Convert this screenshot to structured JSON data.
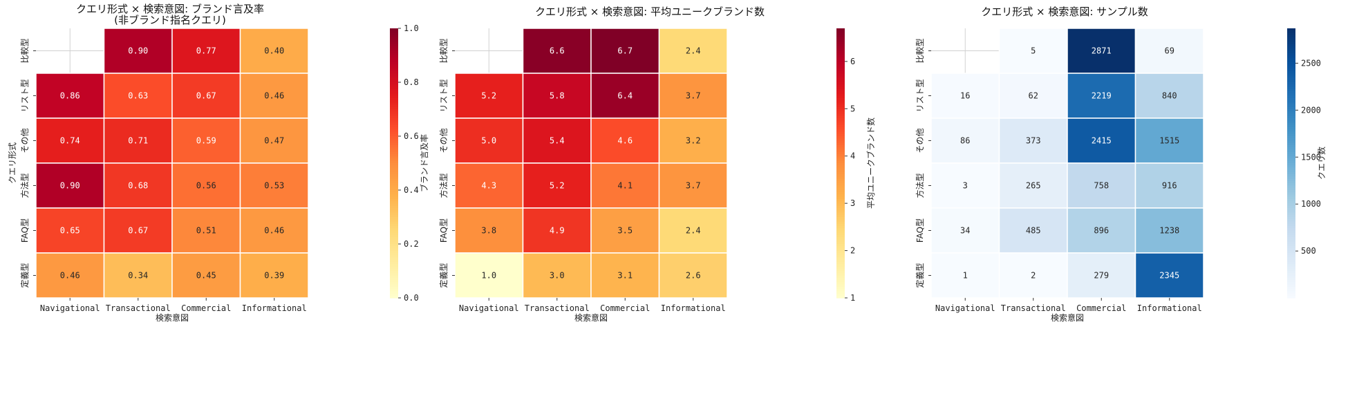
{
  "chart_data": [
    {
      "type": "heatmap",
      "title": "クエリ形式 × 検索意図: ブランド言及率\n(非ブランド指名クエリ)",
      "xlabel": "検索意図",
      "ylabel": "クエリ形式",
      "x_categories": [
        "Navigational",
        "Transactional",
        "Commercial",
        "Informational"
      ],
      "y_categories": [
        "比較型",
        "リスト型",
        "その他",
        "方法型",
        "FAQ型",
        "定義型"
      ],
      "values": [
        [
          null,
          0.9,
          0.77,
          0.4
        ],
        [
          0.86,
          0.63,
          0.67,
          0.46
        ],
        [
          0.74,
          0.71,
          0.59,
          0.47
        ],
        [
          0.9,
          0.68,
          0.56,
          0.53
        ],
        [
          0.65,
          0.67,
          0.51,
          0.46
        ],
        [
          0.46,
          0.34,
          0.45,
          0.39
        ]
      ],
      "labels": [
        [
          "",
          "0.90",
          "0.77",
          "0.40"
        ],
        [
          "0.86",
          "0.63",
          "0.67",
          "0.46"
        ],
        [
          "0.74",
          "0.71",
          "0.59",
          "0.47"
        ],
        [
          "0.90",
          "0.68",
          "0.56",
          "0.53"
        ],
        [
          "0.65",
          "0.67",
          "0.51",
          "0.46"
        ],
        [
          "0.46",
          "0.34",
          "0.45",
          "0.39"
        ]
      ],
      "colormap": "YlOrRd",
      "vmin": 0,
      "vmax": 1,
      "colorbar_label": "ブランド言及率",
      "colorbar_ticks": [
        0.0,
        0.2,
        0.4,
        0.6,
        0.8,
        1.0
      ],
      "colorbar_tick_labels": [
        "0.0",
        "0.2",
        "0.4",
        "0.6",
        "0.8",
        "1.0"
      ]
    },
    {
      "type": "heatmap",
      "title": "クエリ形式 × 検索意図: 平均ユニークブランド数",
      "xlabel": "検索意図",
      "ylabel": "",
      "x_categories": [
        "Navigational",
        "Transactional",
        "Commercial",
        "Informational"
      ],
      "y_categories": [
        "比較型",
        "リスト型",
        "その他",
        "方法型",
        "FAQ型",
        "定義型"
      ],
      "values": [
        [
          null,
          6.6,
          6.7,
          2.4
        ],
        [
          5.2,
          5.8,
          6.4,
          3.7
        ],
        [
          5.0,
          5.4,
          4.6,
          3.2
        ],
        [
          4.3,
          5.2,
          4.1,
          3.7
        ],
        [
          3.8,
          4.9,
          3.5,
          2.4
        ],
        [
          1.0,
          3.0,
          3.1,
          2.6
        ]
      ],
      "labels": [
        [
          "",
          "6.6",
          "6.7",
          "2.4"
        ],
        [
          "5.2",
          "5.8",
          "6.4",
          "3.7"
        ],
        [
          "5.0",
          "5.4",
          "4.6",
          "3.2"
        ],
        [
          "4.3",
          "5.2",
          "4.1",
          "3.7"
        ],
        [
          "3.8",
          "4.9",
          "3.5",
          "2.4"
        ],
        [
          "1.0",
          "3.0",
          "3.1",
          "2.6"
        ]
      ],
      "colormap": "YlOrRd",
      "vmin": 1.0,
      "vmax": 6.7,
      "colorbar_label": "平均ユニークブランド数",
      "colorbar_ticks": [
        1,
        2,
        3,
        4,
        5,
        6
      ],
      "colorbar_tick_labels": [
        "1",
        "2",
        "3",
        "4",
        "5",
        "6"
      ]
    },
    {
      "type": "heatmap",
      "title": "クエリ形式 × 検索意図: サンプル数",
      "xlabel": "検索意図",
      "ylabel": "",
      "x_categories": [
        "Navigational",
        "Transactional",
        "Commercial",
        "Informational"
      ],
      "y_categories": [
        "比較型",
        "リスト型",
        "その他",
        "方法型",
        "FAQ型",
        "定義型"
      ],
      "values": [
        [
          null,
          5,
          2871,
          69
        ],
        [
          16,
          62,
          2219,
          840
        ],
        [
          86,
          373,
          2415,
          1515
        ],
        [
          3,
          265,
          758,
          916
        ],
        [
          34,
          485,
          896,
          1238
        ],
        [
          1,
          2,
          279,
          2345
        ]
      ],
      "labels": [
        [
          "",
          "5",
          "2871",
          "69"
        ],
        [
          "16",
          "62",
          "2219",
          "840"
        ],
        [
          "86",
          "373",
          "2415",
          "1515"
        ],
        [
          "3",
          "265",
          "758",
          "916"
        ],
        [
          "34",
          "485",
          "896",
          "1238"
        ],
        [
          "1",
          "2",
          "279",
          "2345"
        ]
      ],
      "colormap": "Blues",
      "vmin": 1,
      "vmax": 2871,
      "colorbar_label": "クエリ数",
      "colorbar_ticks": [
        500,
        1000,
        1500,
        2000,
        2500
      ],
      "colorbar_tick_labels": [
        "500",
        "1000",
        "1500",
        "2000",
        "2500"
      ]
    }
  ]
}
